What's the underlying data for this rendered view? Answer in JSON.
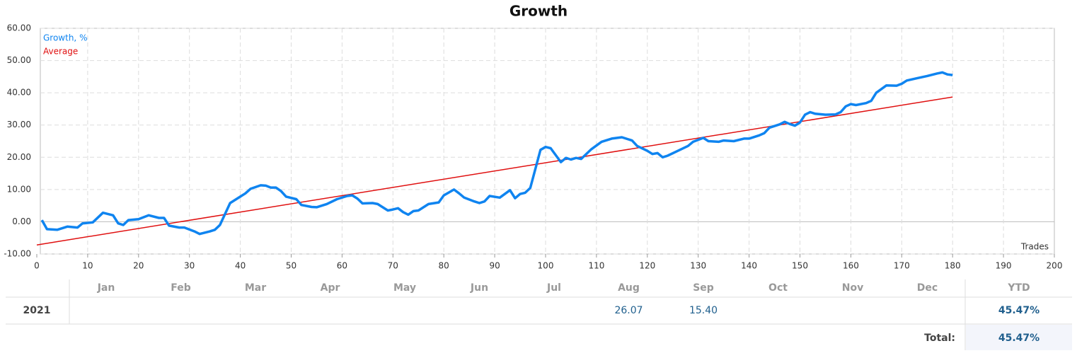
{
  "chart_data": {
    "type": "line",
    "title": "Growth",
    "xlabel": "Trades",
    "xlim": [
      0,
      200
    ],
    "xticks": [
      0,
      10,
      20,
      30,
      40,
      50,
      60,
      70,
      80,
      90,
      100,
      110,
      120,
      130,
      140,
      150,
      160,
      170,
      180,
      190,
      200
    ],
    "ylim": [
      -10,
      60
    ],
    "yticks": [
      {
        "value": -10,
        "label": "-10.00"
      },
      {
        "value": 0,
        "label": "0.00"
      },
      {
        "value": 10,
        "label": "10.00"
      },
      {
        "value": 20,
        "label": "20.00"
      },
      {
        "value": 30,
        "label": "30.00"
      },
      {
        "value": 40,
        "label": "40.00"
      },
      {
        "value": 50,
        "label": "50.00"
      },
      {
        "value": 60,
        "label": "60.00"
      }
    ],
    "grid": true,
    "legend": "top-left",
    "series": [
      {
        "name": "Growth, %",
        "color": "#0f84f0",
        "x": [
          1,
          2,
          4,
          6,
          8,
          9,
          11,
          13,
          15,
          16,
          17,
          18,
          20,
          22,
          24,
          25,
          26,
          28,
          29,
          31,
          32,
          34,
          35,
          36,
          38,
          40,
          41,
          42,
          44,
          45,
          46,
          47,
          48,
          49,
          51,
          52,
          54,
          55,
          57,
          59,
          61,
          62,
          63,
          64,
          66,
          67,
          69,
          70,
          71,
          72,
          73,
          74,
          75,
          77,
          79,
          80,
          82,
          83,
          84,
          86,
          87,
          88,
          89,
          91,
          93,
          94,
          95,
          96,
          97,
          99,
          100,
          101,
          103,
          104,
          105,
          106,
          107,
          109,
          111,
          113,
          115,
          117,
          118,
          120,
          121,
          122,
          123,
          124,
          126,
          128,
          129,
          131,
          132,
          134,
          135,
          137,
          139,
          140,
          142,
          143,
          144,
          146,
          147,
          148,
          149,
          150,
          151,
          152,
          153,
          155,
          157,
          158,
          159,
          160,
          161,
          163,
          164,
          165,
          167,
          169,
          170,
          171,
          173,
          175,
          177,
          178,
          179,
          180
        ],
        "values": [
          0.5,
          -2.3,
          -2.5,
          -1.5,
          -1.8,
          -0.5,
          -0.2,
          2.8,
          2.0,
          -0.5,
          -1.0,
          0.5,
          0.8,
          2.0,
          1.2,
          1.2,
          -1.2,
          -1.8,
          -1.8,
          -3.0,
          -3.8,
          -3.0,
          -2.5,
          -1.0,
          5.8,
          7.8,
          8.8,
          10.2,
          11.3,
          11.2,
          10.6,
          10.6,
          9.5,
          7.8,
          7.0,
          5.2,
          4.6,
          4.5,
          5.5,
          7.0,
          8.0,
          8.2,
          7.2,
          5.7,
          5.8,
          5.5,
          3.5,
          3.8,
          4.2,
          3.0,
          2.2,
          3.3,
          3.5,
          5.5,
          6.0,
          8.2,
          10.0,
          8.8,
          7.5,
          6.3,
          5.8,
          6.3,
          8.0,
          7.5,
          9.8,
          7.3,
          8.6,
          9.0,
          10.5,
          22.3,
          23.2,
          22.8,
          18.5,
          19.8,
          19.3,
          19.8,
          19.5,
          22.5,
          24.8,
          25.8,
          26.2,
          25.2,
          23.5,
          22.0,
          21.0,
          21.3,
          20.0,
          20.5,
          22.0,
          23.5,
          24.8,
          26.0,
          25.0,
          24.8,
          25.2,
          25.0,
          25.8,
          25.8,
          26.8,
          27.5,
          29.2,
          30.2,
          31.0,
          30.3,
          29.8,
          30.8,
          33.2,
          34.0,
          33.5,
          33.2,
          33.3,
          34.0,
          35.8,
          36.5,
          36.2,
          36.8,
          37.5,
          40.0,
          42.3,
          42.2,
          42.8,
          43.8,
          44.5,
          45.2,
          46.0,
          46.3,
          45.7,
          45.5
        ]
      },
      {
        "name": "Average",
        "color": "#e01010",
        "x": [
          0,
          180
        ],
        "values": [
          -7.2,
          38.7
        ]
      }
    ]
  },
  "table": {
    "columns": [
      "Jan",
      "Feb",
      "Mar",
      "Apr",
      "May",
      "Jun",
      "Jul",
      "Aug",
      "Sep",
      "Oct",
      "Nov",
      "Dec"
    ],
    "ytd_header": "YTD",
    "rows": [
      {
        "label": "2021",
        "cells": [
          null,
          null,
          null,
          null,
          null,
          null,
          null,
          "26.07",
          "15.40",
          null,
          null,
          null
        ],
        "ytd": "45.47%"
      }
    ],
    "total_label": "Total:",
    "total": "45.47%"
  }
}
